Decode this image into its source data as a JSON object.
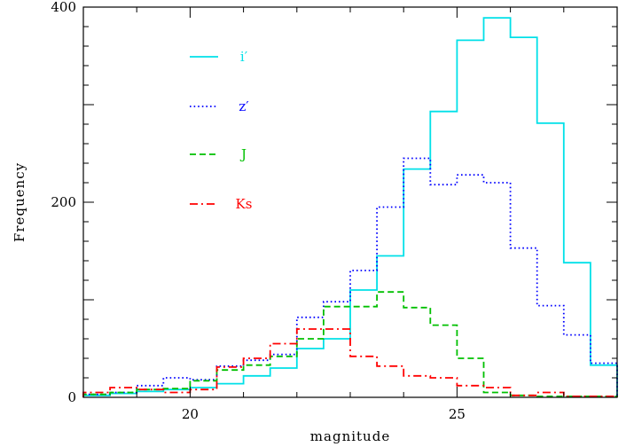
{
  "chart_data": {
    "type": "line",
    "subtype": "step histogram",
    "xlabel": "magnitude",
    "ylabel": "Frequency",
    "xlim": [
      18.0,
      28.0
    ],
    "ylim": [
      0,
      400
    ],
    "xticks": [
      20,
      25
    ],
    "yticks": [
      0,
      200,
      400
    ],
    "grid": false,
    "legend_position": "top-left",
    "bin_edges": [
      18.0,
      18.5,
      19.0,
      19.5,
      20.0,
      20.5,
      21.0,
      21.5,
      22.0,
      22.5,
      23.0,
      23.5,
      24.0,
      24.5,
      25.0,
      25.5,
      26.0,
      26.5,
      27.0,
      27.5,
      28.0
    ],
    "series": [
      {
        "name": "i′",
        "color": "#00e0e8",
        "dash": "solid",
        "values": [
          2,
          4,
          6,
          8,
          10,
          14,
          22,
          30,
          50,
          60,
          110,
          145,
          234,
          293,
          366,
          389,
          369,
          281,
          138,
          33
        ]
      },
      {
        "name": "z′",
        "color": "#0000ff",
        "dash": "dotted",
        "values": [
          3,
          5,
          12,
          20,
          18,
          32,
          38,
          44,
          82,
          98,
          130,
          195,
          245,
          218,
          228,
          220,
          153,
          94,
          64,
          35
        ]
      },
      {
        "name": "J",
        "color": "#00c000",
        "dash": "dashed",
        "values": [
          3,
          5,
          8,
          9,
          17,
          28,
          33,
          42,
          60,
          93,
          93,
          108,
          92,
          74,
          40,
          5,
          2,
          1,
          1,
          1
        ]
      },
      {
        "name": "Ks",
        "color": "#ff0000",
        "dash": "dashdot",
        "values": [
          5,
          10,
          8,
          5,
          8,
          31,
          40,
          55,
          70,
          70,
          42,
          32,
          22,
          20,
          12,
          10,
          2,
          5,
          1,
          1
        ]
      }
    ]
  }
}
